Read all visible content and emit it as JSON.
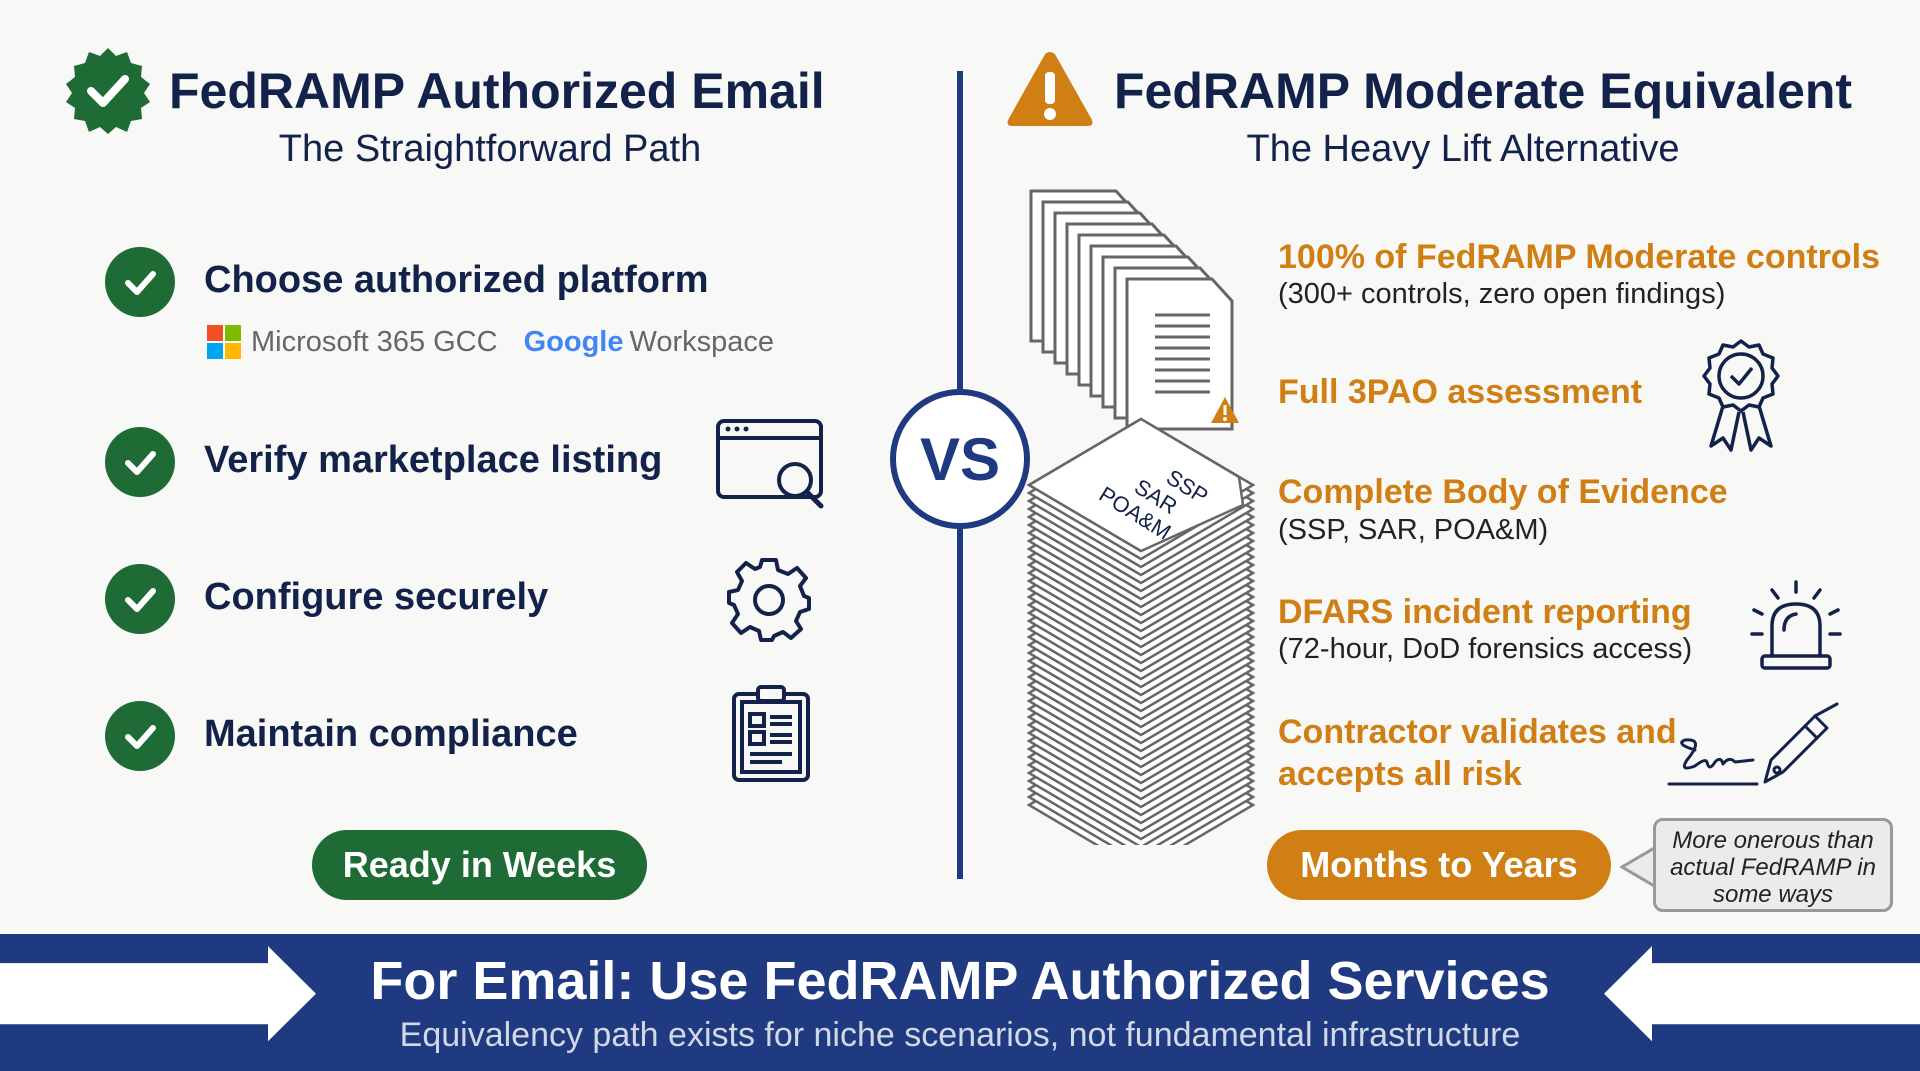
{
  "left": {
    "title": "FedRAMP Authorized Email",
    "subtitle": "The Straightforward Path",
    "steps": [
      {
        "label": "Choose authorized platform",
        "icon": "check-icon"
      },
      {
        "label": "Verify marketplace listing",
        "icon": "browser-search-icon"
      },
      {
        "label": "Configure securely",
        "icon": "gear-icon"
      },
      {
        "label": "Maintain compliance",
        "icon": "clipboard-icon"
      }
    ],
    "platforms": {
      "microsoft": "Microsoft 365 GCC",
      "google_brand": "Google",
      "google_product": "Workspace"
    },
    "badge": "Ready in Weeks"
  },
  "vs": "VS",
  "right": {
    "title": "FedRAMP Moderate Equivalent",
    "subtitle": "The Heavy Lift Alternative",
    "requirements": [
      {
        "heading": "100% of FedRAMP Moderate controls",
        "detail": "(300+ controls, zero open findings)"
      },
      {
        "heading": "Full 3PAO assessment",
        "detail": "",
        "icon": "award-ribbon-icon"
      },
      {
        "heading": "Complete Body of Evidence",
        "detail": "(SSP, SAR, POA&M)"
      },
      {
        "heading": "DFARS incident reporting",
        "detail": "(72-hour, DoD forensics access)",
        "icon": "alarm-light-icon"
      },
      {
        "heading": "Contractor validates and accepts all risk",
        "detail": "",
        "icon": "signature-pen-icon"
      }
    ],
    "doc_labels": [
      "SSP",
      "SAR",
      "POA&M"
    ],
    "badge": "Months to Years",
    "callout": "More onerous than actual FedRAMP in some ways"
  },
  "banner": {
    "title": "For Email: Use FedRAMP Authorized Services",
    "subtitle": "Equivalency path exists for niche scenarios, not fundamental infrastructure"
  },
  "colors": {
    "green": "#1e6b35",
    "orange": "#d07f15",
    "navy": "#1f3a80",
    "text": "#13224a"
  }
}
